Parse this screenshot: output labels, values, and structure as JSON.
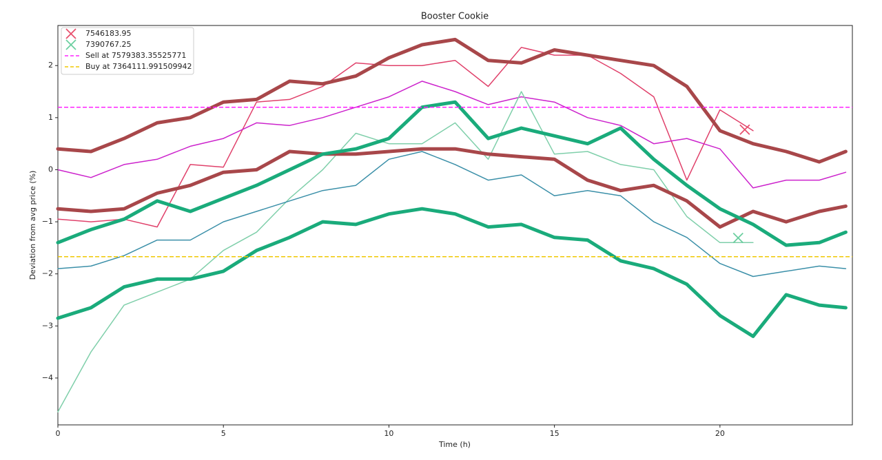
{
  "chart_data": {
    "type": "line",
    "title": "Booster Cookie",
    "xlabel": "Time (h)",
    "ylabel": "Deviation from avg price (%)",
    "x": [
      0,
      1,
      2,
      3,
      4,
      5,
      6,
      7,
      8,
      9,
      10,
      11,
      12,
      13,
      14,
      15,
      16,
      17,
      18,
      19,
      20,
      21,
      22,
      23,
      23.8
    ],
    "xlim": [
      0,
      24
    ],
    "ylim": [
      -4.9,
      2.77
    ],
    "xticks": [
      0,
      5,
      10,
      15,
      20
    ],
    "yticks": [
      {
        "value": -4,
        "label": "−4"
      },
      {
        "value": -3,
        "label": "−3"
      },
      {
        "value": -2,
        "label": "−2"
      },
      {
        "value": -1,
        "label": "−1"
      },
      0,
      1,
      2
    ],
    "legend": "upper left",
    "series": [
      {
        "color": "#e0406a",
        "linewidth": 1.5,
        "values": [
          -0.95,
          -1.0,
          -0.95,
          -1.1,
          0.1,
          0.05,
          1.3,
          1.35,
          1.6,
          2.05,
          2.0,
          2.0,
          2.1,
          1.6,
          2.35,
          2.2,
          2.2,
          1.85,
          1.4,
          -0.2,
          1.15,
          0.75,
          null,
          null,
          null
        ]
      },
      {
        "color": "#cc22cc",
        "linewidth": 1.5,
        "values": [
          0.0,
          -0.15,
          0.1,
          0.2,
          0.45,
          0.6,
          0.9,
          0.85,
          1.0,
          1.2,
          1.4,
          1.7,
          1.5,
          1.25,
          1.4,
          1.3,
          1.0,
          0.85,
          0.5,
          0.6,
          0.4,
          -0.35,
          -0.2,
          -0.2,
          -0.05
        ]
      },
      {
        "color": "#7fcfaa",
        "linewidth": 1.5,
        "values": [
          -4.65,
          -3.5,
          -2.6,
          -2.35,
          -2.1,
          -1.55,
          -1.2,
          -0.55,
          0.0,
          0.7,
          0.5,
          0.5,
          0.9,
          0.2,
          1.5,
          0.3,
          0.35,
          0.1,
          0.0,
          -0.9,
          -1.4,
          -1.4,
          null,
          null,
          null
        ]
      },
      {
        "color": "#3a8fa8",
        "linewidth": 1.5,
        "values": [
          -1.9,
          -1.85,
          -1.65,
          -1.35,
          -1.35,
          -1.0,
          -0.8,
          -0.6,
          -0.4,
          -0.3,
          0.2,
          0.35,
          0.1,
          -0.2,
          -0.1,
          -0.5,
          -0.4,
          -0.5,
          -1.0,
          -1.3,
          -1.8,
          -2.05,
          -1.95,
          -1.85,
          -1.9
        ]
      },
      {
        "color": "#a8474a",
        "linewidth": 5,
        "values": [
          0.4,
          0.35,
          0.6,
          0.9,
          1.0,
          1.3,
          1.35,
          1.7,
          1.65,
          1.8,
          2.15,
          2.4,
          2.5,
          2.1,
          2.05,
          2.3,
          2.2,
          2.1,
          2.0,
          1.6,
          0.75,
          0.5,
          0.35,
          0.15,
          0.35
        ]
      },
      {
        "color": "#a8474a",
        "linewidth": 5,
        "values": [
          -0.75,
          -0.8,
          -0.75,
          -0.45,
          -0.3,
          -0.05,
          0.0,
          0.35,
          0.3,
          0.3,
          0.35,
          0.4,
          0.4,
          0.3,
          0.25,
          0.2,
          -0.2,
          -0.4,
          -0.3,
          -0.6,
          -1.1,
          -0.8,
          -1.0,
          -0.8,
          -0.7
        ]
      },
      {
        "color": "#1aab7b",
        "linewidth": 5,
        "values": [
          -1.4,
          -1.15,
          -0.95,
          -0.6,
          -0.8,
          -0.55,
          -0.3,
          0.0,
          0.3,
          0.4,
          0.6,
          1.2,
          1.3,
          0.6,
          0.8,
          0.65,
          0.5,
          0.8,
          0.2,
          -0.3,
          -0.75,
          -1.05,
          -1.45,
          -1.4,
          -1.2
        ]
      },
      {
        "color": "#1aab7b",
        "linewidth": 5,
        "values": [
          -2.85,
          -2.65,
          -2.25,
          -2.1,
          -2.1,
          -1.95,
          -1.55,
          -1.3,
          -1.0,
          -1.05,
          -0.85,
          -0.75,
          -0.85,
          -1.1,
          -1.05,
          -1.3,
          -1.35,
          -1.75,
          -1.9,
          -2.2,
          -2.8,
          -3.2,
          -2.4,
          -2.6,
          -2.65
        ]
      }
    ],
    "markers": [
      {
        "name": "7546183.95",
        "color": "#e8506e",
        "x": 20.75,
        "y": 0.77
      },
      {
        "name": "7390767.25",
        "color": "#6ccfa0",
        "x": 20.55,
        "y": -1.31
      }
    ],
    "hlines": [
      {
        "name": "Sell at 7579383.35525771",
        "color": "#ff22ff",
        "y": 1.2
      },
      {
        "name": "Buy at 7364111.991509942",
        "color": "#f0c800",
        "y": -1.67
      }
    ]
  }
}
